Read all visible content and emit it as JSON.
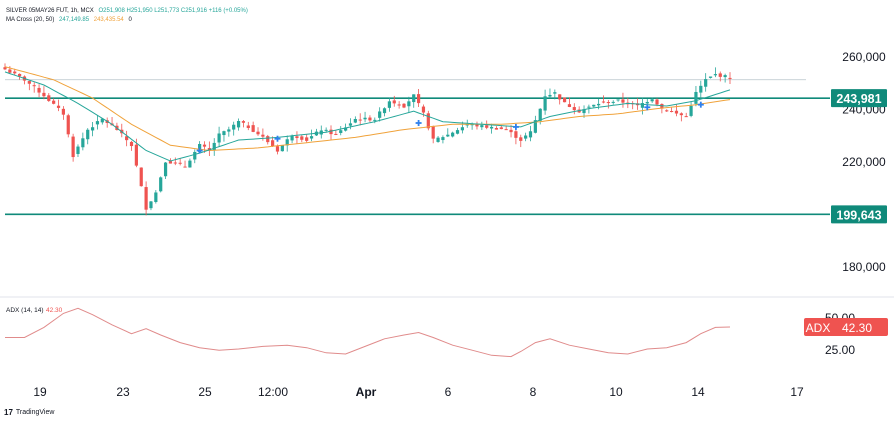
{
  "header": {
    "symbol": "SILVER 05MAY26 FUT, 1h, MCX",
    "ohlc": "O251,908 H251,950 L251,773 C251,916 +116 (+0.05%)",
    "ma_label": "MA Cross (20, 50)",
    "ma_fast_value": "247,149.85",
    "ma_slow_value": "243,435.54",
    "ma_extra": "0"
  },
  "branding": {
    "logo": "17",
    "name": "TradingView"
  },
  "colors": {
    "up": "#26a69a",
    "down": "#ef5350",
    "ma_fast": "#26a69a",
    "ma_slow": "#f0a23a",
    "level_line": "#0f8a7a",
    "adx_line": "#e08b8b",
    "adx_badge": "#ef5350",
    "cross_marker": "#2f80ed",
    "grid": "#f0f3fa",
    "text": "#131722"
  },
  "chart_data": [
    {
      "type": "candlestick",
      "title": "SILVER 05MAY26 FUT",
      "x_ticks": [
        "19",
        "23",
        "25",
        "12:00",
        "Apr",
        "6",
        "8",
        "10",
        "14",
        "17"
      ],
      "y_ticks": [
        180000,
        220000,
        240000,
        260000
      ],
      "y_tick_labels": [
        "180,000",
        "220,000",
        "240,000",
        "260,000"
      ],
      "ylim": [
        170000,
        270000
      ],
      "horizontal_levels": [
        {
          "label": "243,981",
          "value": 243981
        },
        {
          "label": "199,643",
          "value": 199643
        },
        {
          "label": "",
          "value": 251000,
          "style": "thin"
        }
      ],
      "path_anchors": [
        [
          0,
          255000
        ],
        [
          4,
          251000
        ],
        [
          8,
          245000
        ],
        [
          12,
          238000
        ],
        [
          14,
          222000
        ],
        [
          17,
          232000
        ],
        [
          20,
          236000
        ],
        [
          23,
          232000
        ],
        [
          26,
          226000
        ],
        [
          29,
          202000
        ],
        [
          31,
          208000
        ],
        [
          33,
          220000
        ],
        [
          37,
          218000
        ],
        [
          40,
          226000
        ],
        [
          42,
          224000
        ],
        [
          44,
          230000
        ],
        [
          46,
          232000
        ],
        [
          48,
          235000
        ],
        [
          50,
          233000
        ],
        [
          53,
          229000
        ],
        [
          56,
          224000
        ],
        [
          59,
          230000
        ],
        [
          62,
          228000
        ],
        [
          65,
          232000
        ],
        [
          68,
          230000
        ],
        [
          72,
          236000
        ],
        [
          76,
          236000
        ],
        [
          79,
          243000
        ],
        [
          82,
          241000
        ],
        [
          84,
          245000
        ],
        [
          86,
          238000
        ],
        [
          88,
          228000
        ],
        [
          91,
          230000
        ],
        [
          95,
          234000
        ],
        [
          99,
          233000
        ],
        [
          103,
          232000
        ],
        [
          106,
          228000
        ],
        [
          108,
          231000
        ],
        [
          110,
          240000
        ],
        [
          111,
          245000
        ],
        [
          113,
          246000
        ],
        [
          115,
          242000
        ],
        [
          118,
          239000
        ],
        [
          122,
          242000
        ],
        [
          126,
          243000
        ],
        [
          130,
          241000
        ],
        [
          133,
          244000
        ],
        [
          135,
          240000
        ],
        [
          138,
          238000
        ],
        [
          140,
          237000
        ],
        [
          142,
          246000
        ],
        [
          144,
          251000
        ],
        [
          146,
          253000
        ],
        [
          149,
          251916
        ]
      ],
      "ma_fast": [
        [
          0,
          254000
        ],
        [
          8,
          249000
        ],
        [
          15,
          242000
        ],
        [
          22,
          234000
        ],
        [
          29,
          224000
        ],
        [
          34,
          220000
        ],
        [
          40,
          223000
        ],
        [
          48,
          228000
        ],
        [
          56,
          229000
        ],
        [
          66,
          231000
        ],
        [
          76,
          235000
        ],
        [
          84,
          239000
        ],
        [
          90,
          235000
        ],
        [
          98,
          234000
        ],
        [
          106,
          233000
        ],
        [
          112,
          237000
        ],
        [
          120,
          240000
        ],
        [
          128,
          242000
        ],
        [
          136,
          241000
        ],
        [
          142,
          243000
        ],
        [
          149,
          247150
        ]
      ],
      "ma_slow": [
        [
          0,
          256000
        ],
        [
          10,
          251000
        ],
        [
          18,
          244000
        ],
        [
          26,
          234000
        ],
        [
          34,
          226000
        ],
        [
          42,
          224000
        ],
        [
          52,
          225000
        ],
        [
          62,
          227000
        ],
        [
          72,
          229000
        ],
        [
          82,
          232000
        ],
        [
          92,
          234000
        ],
        [
          102,
          234000
        ],
        [
          110,
          235000
        ],
        [
          118,
          237000
        ],
        [
          126,
          238000
        ],
        [
          134,
          240000
        ],
        [
          142,
          241500
        ],
        [
          149,
          243436
        ]
      ],
      "ma_cross_points": [
        [
          40,
          224000
        ],
        [
          56,
          228500
        ],
        [
          85,
          234500
        ],
        [
          105,
          233000
        ],
        [
          132,
          240500
        ],
        [
          143,
          241500
        ]
      ]
    },
    {
      "type": "line",
      "title": "ADX (14, 14)",
      "series": [
        {
          "name": "ADX",
          "value_label": "42.30"
        }
      ],
      "y_ticks": [
        25,
        50
      ],
      "y_tick_labels": [
        "25.00",
        "50.00"
      ],
      "ylim": [
        10,
        62
      ],
      "points": [
        [
          0,
          34
        ],
        [
          4,
          34
        ],
        [
          8,
          42
        ],
        [
          12,
          53
        ],
        [
          15,
          57
        ],
        [
          18,
          52
        ],
        [
          22,
          44
        ],
        [
          26,
          37
        ],
        [
          29,
          41
        ],
        [
          32,
          36
        ],
        [
          36,
          30
        ],
        [
          40,
          26
        ],
        [
          44,
          24
        ],
        [
          48,
          25
        ],
        [
          53,
          27
        ],
        [
          58,
          28
        ],
        [
          62,
          26
        ],
        [
          66,
          22
        ],
        [
          70,
          21
        ],
        [
          74,
          27
        ],
        [
          78,
          33
        ],
        [
          82,
          36
        ],
        [
          85,
          38
        ],
        [
          88,
          34
        ],
        [
          92,
          28
        ],
        [
          96,
          24
        ],
        [
          100,
          20
        ],
        [
          104,
          19
        ],
        [
          106,
          23
        ],
        [
          109,
          30
        ],
        [
          112,
          33
        ],
        [
          116,
          28
        ],
        [
          120,
          25
        ],
        [
          124,
          22
        ],
        [
          128,
          21
        ],
        [
          132,
          25
        ],
        [
          136,
          26
        ],
        [
          140,
          30
        ],
        [
          143,
          37
        ],
        [
          146,
          42
        ],
        [
          149,
          42.3
        ]
      ]
    }
  ]
}
